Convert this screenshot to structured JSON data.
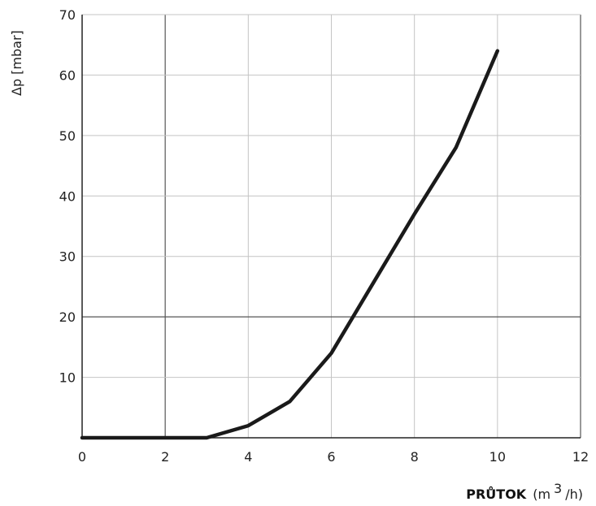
{
  "chart_data": {
    "type": "line",
    "ylabel": "Δp [mbar]",
    "xlabel": {
      "bold": "PRŮTOK",
      "unit_open": "(m",
      "unit_sup": "3",
      "unit_close": "/h)"
    },
    "xlim": [
      0,
      12
    ],
    "ylim": [
      0,
      70
    ],
    "xticks": [
      0,
      2,
      4,
      6,
      8,
      10,
      12
    ],
    "yticks": [
      10,
      20,
      30,
      40,
      50,
      60,
      70
    ],
    "grid": true,
    "series": [
      {
        "color": "#1a1a1a",
        "x": [
          0,
          1,
          2,
          3,
          4,
          5,
          6,
          7,
          8,
          9,
          10
        ],
        "y": [
          0,
          0,
          0,
          0,
          2,
          6,
          14,
          25.5,
          37,
          48,
          64
        ]
      }
    ]
  }
}
